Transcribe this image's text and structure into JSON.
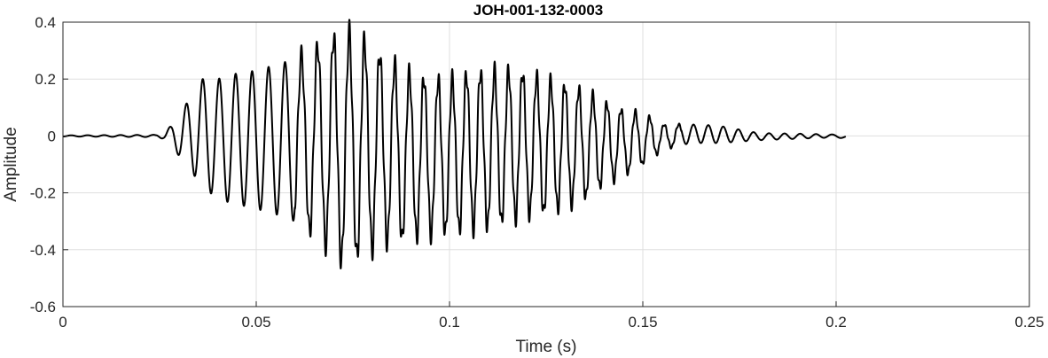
{
  "chart_data": {
    "type": "line",
    "title": "JOH-001-132-0003",
    "xlabel": "Time (s)",
    "ylabel": "Amplitude",
    "xlim": [
      0,
      0.25
    ],
    "ylim": [
      -0.6,
      0.4
    ],
    "grid": true,
    "x_ticks": [
      0,
      0.05,
      0.1,
      0.15,
      0.2,
      0.25
    ],
    "x_tick_labels": [
      "0",
      "0.05",
      "0.1",
      "0.15",
      "0.2",
      "0.25"
    ],
    "y_ticks": [
      -0.6,
      -0.4,
      -0.2,
      0,
      0.2,
      0.4
    ],
    "y_tick_labels": [
      "-0.6",
      "-0.4",
      "-0.2",
      "0",
      "0.2",
      "0.4"
    ],
    "series": [
      {
        "color": "#000000",
        "style": "oscillation",
        "t_start": 0,
        "t_end": 0.2025,
        "envelope_top": [
          [
            0,
            0.002
          ],
          [
            0.024,
            0.004
          ],
          [
            0.026,
            0.015
          ],
          [
            0.028,
            0.035
          ],
          [
            0.03,
            0.07
          ],
          [
            0.034,
            0.16
          ],
          [
            0.036,
            0.2
          ],
          [
            0.04,
            0.2
          ],
          [
            0.045,
            0.22
          ],
          [
            0.05,
            0.23
          ],
          [
            0.055,
            0.25
          ],
          [
            0.06,
            0.27
          ],
          [
            0.064,
            0.3
          ],
          [
            0.068,
            0.34
          ],
          [
            0.072,
            0.365
          ],
          [
            0.076,
            0.36
          ],
          [
            0.08,
            0.31
          ],
          [
            0.084,
            0.27
          ],
          [
            0.09,
            0.22
          ],
          [
            0.095,
            0.2
          ],
          [
            0.1,
            0.2
          ],
          [
            0.105,
            0.22
          ],
          [
            0.11,
            0.23
          ],
          [
            0.115,
            0.23
          ],
          [
            0.12,
            0.22
          ],
          [
            0.125,
            0.2
          ],
          [
            0.13,
            0.18
          ],
          [
            0.135,
            0.16
          ],
          [
            0.14,
            0.12
          ],
          [
            0.145,
            0.09
          ],
          [
            0.15,
            0.08
          ],
          [
            0.155,
            0.04
          ],
          [
            0.16,
            0.04
          ],
          [
            0.165,
            0.04
          ],
          [
            0.17,
            0.035
          ],
          [
            0.18,
            0.01
          ],
          [
            0.19,
            0.008
          ],
          [
            0.2,
            0.005
          ],
          [
            0.2025,
            0.0
          ]
        ],
        "envelope_bottom": [
          [
            0,
            -0.002
          ],
          [
            0.024,
            -0.004
          ],
          [
            0.026,
            -0.01
          ],
          [
            0.028,
            -0.03
          ],
          [
            0.03,
            -0.07
          ],
          [
            0.034,
            -0.14
          ],
          [
            0.038,
            -0.2
          ],
          [
            0.042,
            -0.23
          ],
          [
            0.048,
            -0.25
          ],
          [
            0.054,
            -0.27
          ],
          [
            0.06,
            -0.3
          ],
          [
            0.064,
            -0.34
          ],
          [
            0.068,
            -0.38
          ],
          [
            0.07,
            -0.44
          ],
          [
            0.074,
            -0.44
          ],
          [
            0.078,
            -0.42
          ],
          [
            0.082,
            -0.38
          ],
          [
            0.09,
            -0.36
          ],
          [
            0.095,
            -0.35
          ],
          [
            0.1,
            -0.34
          ],
          [
            0.105,
            -0.33
          ],
          [
            0.11,
            -0.32
          ],
          [
            0.115,
            -0.3
          ],
          [
            0.12,
            -0.28
          ],
          [
            0.125,
            -0.27
          ],
          [
            0.13,
            -0.25
          ],
          [
            0.135,
            -0.22
          ],
          [
            0.14,
            -0.17
          ],
          [
            0.145,
            -0.14
          ],
          [
            0.15,
            -0.1
          ],
          [
            0.155,
            -0.05
          ],
          [
            0.16,
            -0.03
          ],
          [
            0.165,
            -0.025
          ],
          [
            0.17,
            -0.025
          ],
          [
            0.18,
            -0.015
          ],
          [
            0.19,
            -0.01
          ],
          [
            0.2,
            -0.005
          ],
          [
            0.2025,
            -0.01
          ]
        ]
      }
    ]
  }
}
